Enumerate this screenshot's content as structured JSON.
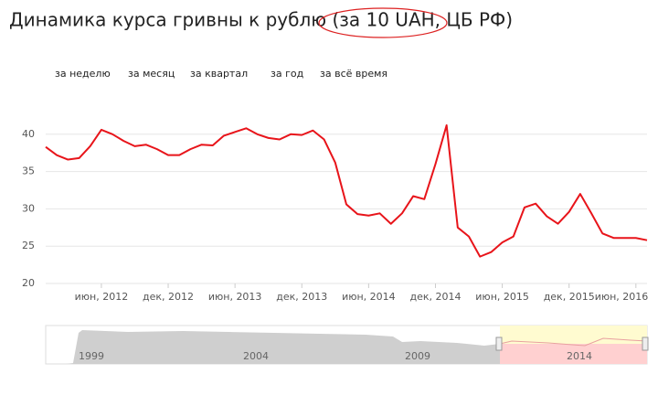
{
  "chart_data": {
    "type": "line",
    "title": "Динамика курса гривны к рублю (за 10 UAH, ЦБ РФ)",
    "range_buttons": [
      "за неделю",
      "за месяц",
      "за квартал",
      "за год",
      "за всё время"
    ],
    "categories": [
      null,
      null,
      null,
      null,
      null,
      "июн, 2012",
      null,
      null,
      null,
      null,
      null,
      "дек, 2012",
      null,
      null,
      null,
      null,
      null,
      "июн, 2013",
      null,
      null,
      null,
      null,
      null,
      "дек, 2013",
      null,
      null,
      null,
      null,
      null,
      "июн, 2014",
      null,
      null,
      null,
      null,
      null,
      "дек, 2014",
      null,
      null,
      null,
      null,
      null,
      "июн, 2015",
      null,
      null,
      null,
      null,
      null,
      "дек, 2015",
      null,
      null,
      null,
      null,
      null,
      "июн, 2016",
      null
    ],
    "series": [
      {
        "color": "#e8141a",
        "values": [
          38.3,
          37.2,
          36.6,
          36.8,
          38.4,
          40.6,
          40.0,
          39.1,
          38.4,
          38.6,
          38.0,
          37.2,
          37.2,
          38.0,
          38.6,
          38.5,
          39.8,
          40.3,
          40.8,
          40.0,
          39.5,
          39.3,
          40.0,
          39.9,
          40.5,
          39.3,
          36.2,
          30.6,
          29.3,
          29.1,
          29.4,
          28.0,
          29.4,
          31.7,
          31.3,
          36.0,
          41.2,
          27.5,
          26.3,
          23.6,
          24.2,
          25.5,
          26.3,
          30.2,
          30.7,
          29.0,
          28.0,
          29.6,
          32.0,
          29.4,
          26.7,
          26.1,
          26.1,
          26.1,
          25.8
        ]
      }
    ],
    "ylim": [
      20,
      45
    ],
    "yticks": [
      20,
      25,
      30,
      35,
      40
    ],
    "grid": true,
    "navigator_labels": [
      "1999",
      "2004",
      "2009",
      "2014"
    ]
  }
}
